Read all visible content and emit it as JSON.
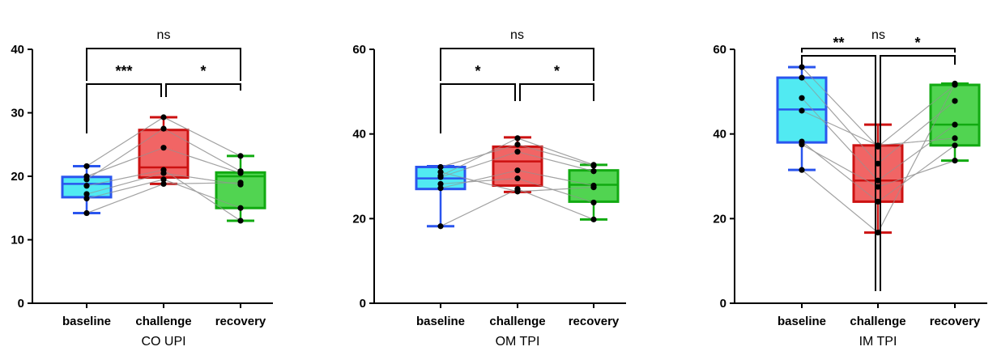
{
  "chart_data": [
    {
      "type": "box",
      "xlabel": "CO UPI",
      "ylabel": "",
      "ylim": [
        0,
        40
      ],
      "yticks": [
        "0",
        "10",
        "20",
        "30",
        "40"
      ],
      "categories": [
        "baseline",
        "challenge",
        "recovery"
      ],
      "colors": {
        "fills": [
          "#33e6f0",
          "#ee4a4a",
          "#33cc33"
        ],
        "strokes": [
          "#2a55ee",
          "#cc1111",
          "#11aa11"
        ]
      },
      "boxes": [
        {
          "min": 14.2,
          "q1": 16.7,
          "median": 18.8,
          "q3": 19.9,
          "max": 21.6
        },
        {
          "min": 18.8,
          "q1": 19.8,
          "median": 21.4,
          "q3": 27.3,
          "max": 29.3
        },
        {
          "min": 13.0,
          "q1": 15.0,
          "median": 20.0,
          "q3": 20.6,
          "max": 23.2
        }
      ],
      "paired_points": [
        [
          20.0,
          24.5,
          20.5
        ],
        [
          19.5,
          27.5,
          20.8
        ],
        [
          17.2,
          20.5,
          18.7
        ],
        [
          21.6,
          29.3,
          23.2
        ],
        [
          18.5,
          21.0,
          13.0
        ],
        [
          16.5,
          19.5,
          15.0
        ],
        [
          14.2,
          18.8,
          19.0
        ]
      ],
      "comparisons": [
        {
          "from": 0,
          "to": 1,
          "label": "***",
          "level": 1
        },
        {
          "from": 1,
          "to": 2,
          "label": "*",
          "level": 1
        },
        {
          "from": 0,
          "to": 2,
          "label": "ns",
          "level": 2
        }
      ]
    },
    {
      "type": "box",
      "xlabel": "OM TPI",
      "ylabel": "",
      "ylim": [
        0,
        60
      ],
      "yticks": [
        "0",
        "20",
        "40",
        "60"
      ],
      "categories": [
        "baseline",
        "challenge",
        "recovery"
      ],
      "colors": {
        "fills": [
          "#33e6f0",
          "#ee4a4a",
          "#33cc33"
        ],
        "strokes": [
          "#2a55ee",
          "#cc1111",
          "#11aa11"
        ]
      },
      "boxes": [
        {
          "min": 18.2,
          "q1": 27.0,
          "median": 29.5,
          "q3": 32.2,
          "max": 32.4
        },
        {
          "min": 26.3,
          "q1": 27.8,
          "median": 33.5,
          "q3": 37.0,
          "max": 39.2
        },
        {
          "min": 19.8,
          "q1": 24.0,
          "median": 28.0,
          "q3": 31.4,
          "max": 32.7
        }
      ],
      "paired_points": [
        [
          18.2,
          27.0,
          19.8
        ],
        [
          27.2,
          31.4,
          27.8
        ],
        [
          28.2,
          29.5,
          23.8
        ],
        [
          29.8,
          35.8,
          31.2
        ],
        [
          32.2,
          37.5,
          32.5
        ],
        [
          30.1,
          39.0,
          32.7
        ],
        [
          31.0,
          26.4,
          27.4
        ]
      ],
      "comparisons": [
        {
          "from": 0,
          "to": 1,
          "label": "*",
          "level": 1
        },
        {
          "from": 1,
          "to": 2,
          "label": "*",
          "level": 1
        },
        {
          "from": 0,
          "to": 2,
          "label": "ns",
          "level": 2
        }
      ]
    },
    {
      "type": "box",
      "xlabel": "IM TPI",
      "ylabel": "",
      "ylim": [
        0,
        60
      ],
      "yticks": [
        "0",
        "20",
        "40",
        "60"
      ],
      "categories": [
        "baseline",
        "challenge",
        "recovery"
      ],
      "colors": {
        "fills": [
          "#33e6f0",
          "#ee4a4a",
          "#33cc33"
        ],
        "strokes": [
          "#2a55ee",
          "#cc1111",
          "#11aa11"
        ]
      },
      "boxes": [
        {
          "min": 31.5,
          "q1": 38.0,
          "median": 45.8,
          "q3": 53.3,
          "max": 55.8
        },
        {
          "min": 16.7,
          "q1": 24.0,
          "median": 29.0,
          "q3": 37.3,
          "max": 42.2
        },
        {
          "min": 33.7,
          "q1": 37.3,
          "median": 42.2,
          "q3": 51.6,
          "max": 51.9
        }
      ],
      "paired_points": [
        [
          55.8,
          37.0,
          51.6
        ],
        [
          53.3,
          33.0,
          47.8
        ],
        [
          48.5,
          29.0,
          42.2
        ],
        [
          45.5,
          37.3,
          39.0
        ],
        [
          38.2,
          24.0,
          37.3
        ],
        [
          37.5,
          27.5,
          33.7
        ],
        [
          31.5,
          16.7,
          51.9
        ]
      ],
      "comparisons": [
        {
          "from": 0,
          "to": 1,
          "label": "**",
          "level": 1
        },
        {
          "from": 1,
          "to": 2,
          "label": "*",
          "level": 1
        },
        {
          "from": 0,
          "to": 2,
          "label": "ns",
          "level": 2
        }
      ]
    }
  ]
}
